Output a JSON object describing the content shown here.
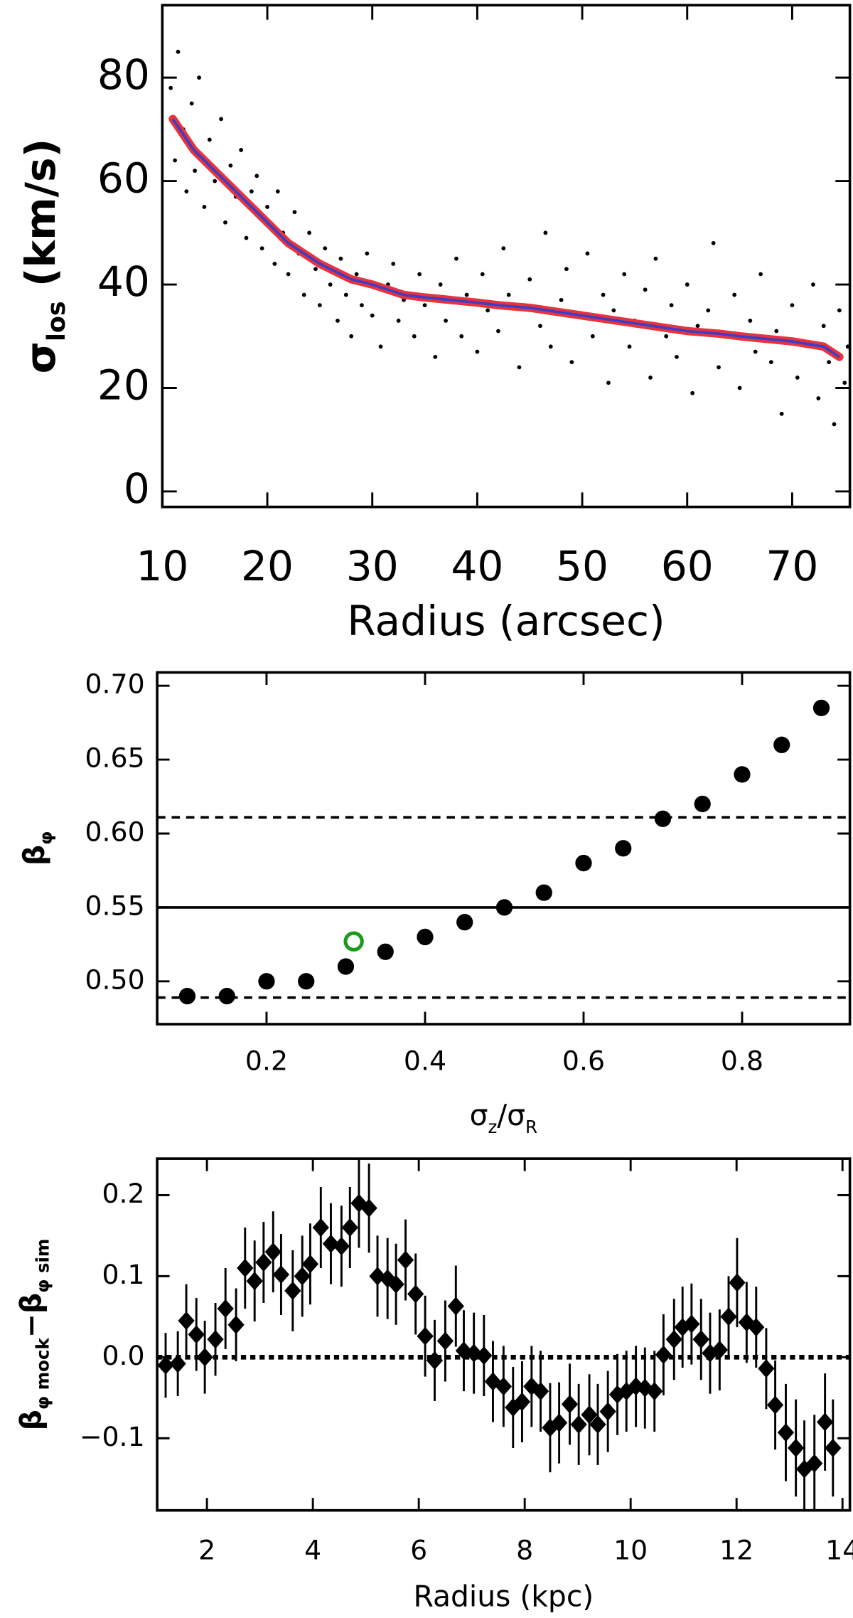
{
  "chart_data": [
    {
      "type": "scatter",
      "xlabel": "Radius (arcsec)",
      "ylabel": [
        {
          "text": "σ",
          "sub": false
        },
        {
          "text": "los",
          "sub": true
        },
        {
          "text": " (km/s)",
          "sub": false
        }
      ],
      "xlim": [
        10,
        75.5
      ],
      "ylim": [
        -3,
        94
      ],
      "xticks": [
        10,
        20,
        30,
        40,
        50,
        60,
        70
      ],
      "yticks": [
        0,
        20,
        40,
        60,
        80
      ],
      "series": [
        {
          "kind": "points",
          "color": "#000000",
          "x": [
            10.8,
            11.2,
            11.5,
            12,
            12.3,
            12.8,
            13.1,
            13.5,
            14,
            14.5,
            15,
            15.6,
            16,
            16.5,
            17,
            17.5,
            18,
            18.5,
            19,
            19.5,
            20,
            20.7,
            21,
            21.5,
            22,
            22.6,
            23,
            23.5,
            24,
            24.6,
            25,
            25.5,
            26,
            26.7,
            27,
            27.5,
            28,
            28.5,
            29,
            29.5,
            30,
            30.8,
            31.5,
            32,
            32.5,
            33,
            34,
            34.5,
            35,
            36,
            36.5,
            37,
            38,
            38.5,
            39,
            40,
            40.5,
            41,
            42,
            42.5,
            43,
            44,
            44.5,
            45,
            46,
            46.5,
            47,
            48,
            48.5,
            49,
            50,
            50.5,
            51,
            52,
            52.5,
            53,
            54,
            54.5,
            55,
            56,
            56.5,
            57,
            58,
            58.5,
            59,
            60,
            60.5,
            61,
            62,
            62.5,
            63,
            64,
            64.5,
            65,
            66,
            66.5,
            67,
            68,
            68.5,
            69,
            70,
            70.5,
            71,
            72,
            72.5,
            73,
            73.5,
            74,
            74.5,
            75,
            75.3
          ],
          "values": [
            78,
            64,
            85,
            70,
            58,
            75,
            62,
            80,
            55,
            68,
            60,
            72,
            52,
            63,
            57,
            66,
            49,
            58,
            61,
            47,
            55,
            44,
            58,
            50,
            42,
            54,
            46,
            38,
            50,
            43,
            36,
            47,
            40,
            33,
            45,
            38,
            30,
            42,
            36,
            46,
            34,
            28,
            40,
            44,
            33,
            37,
            30,
            42,
            36,
            26,
            40,
            33,
            45,
            30,
            38,
            27,
            42,
            35,
            31,
            47,
            38,
            24,
            36,
            41,
            32,
            50,
            28,
            37,
            43,
            25,
            34,
            46,
            30,
            38,
            21,
            35,
            42,
            28,
            33,
            39,
            22,
            45,
            30,
            36,
            26,
            40,
            19,
            32,
            35,
            48,
            24,
            30,
            38,
            20,
            33,
            27,
            42,
            25,
            31,
            15,
            36,
            22,
            29,
            40,
            18,
            32,
            25,
            13,
            35,
            21,
            28
          ]
        },
        {
          "kind": "line",
          "color": "#e8323c",
          "line_color": "#3b3fc8",
          "x": [
            11,
            13,
            15,
            18,
            20,
            22,
            25,
            28,
            30,
            33,
            35,
            40,
            42,
            45,
            50,
            55,
            60,
            63,
            65,
            70,
            73,
            74.5
          ],
          "values": [
            72,
            66,
            62,
            56,
            52,
            48,
            44,
            41,
            40,
            38,
            37.5,
            36.5,
            36,
            35.5,
            34,
            32.5,
            31,
            30.5,
            30,
            29,
            28,
            26
          ]
        }
      ]
    },
    {
      "type": "scatter",
      "xlabel": [
        {
          "text": "σ",
          "sub": false
        },
        {
          "text": "z",
          "sub": true
        },
        {
          "text": "/σ",
          "sub": false
        },
        {
          "text": "R",
          "sub": true
        }
      ],
      "ylabel": [
        {
          "text": "β",
          "sub": false
        },
        {
          "text": "φ",
          "sub": true
        }
      ],
      "xlim": [
        0.062,
        0.936
      ],
      "ylim": [
        0.471,
        0.709
      ],
      "xticks": [
        0.2,
        0.4,
        0.6,
        0.8
      ],
      "yticks": [
        {
          "value": 0.5,
          "label": "0.50"
        },
        0.55,
        {
          "value": 0.6,
          "label": "0.60"
        },
        0.65,
        {
          "value": 0.7,
          "label": "0.70"
        }
      ],
      "hlines": [
        {
          "y": 0.55,
          "style": "solid"
        },
        {
          "y": 0.611,
          "style": "dashed"
        },
        {
          "y": 0.489,
          "style": "dashed"
        }
      ],
      "series": [
        {
          "kind": "filled",
          "color": "#000000",
          "x": [
            0.1,
            0.15,
            0.2,
            0.25,
            0.3,
            0.35,
            0.4,
            0.45,
            0.5,
            0.55,
            0.6,
            0.65,
            0.7,
            0.75,
            0.8,
            0.85,
            0.9
          ],
          "values": [
            0.49,
            0.49,
            0.5,
            0.5,
            0.51,
            0.52,
            0.53,
            0.54,
            0.55,
            0.56,
            0.58,
            0.59,
            0.61,
            0.62,
            0.64,
            0.66,
            0.685
          ]
        },
        {
          "kind": "open",
          "color": "#1a9a1a",
          "x": [
            0.31
          ],
          "values": [
            0.527
          ]
        }
      ]
    },
    {
      "type": "errorbar",
      "xlabel": "Radius (kpc)",
      "ylabel": [
        {
          "text": "β",
          "sub": false
        },
        {
          "text": "φ mock",
          "sub": true
        },
        {
          "text": "−β",
          "sub": false
        },
        {
          "text": "φ sim",
          "sub": true
        }
      ],
      "xlim": [
        1.06,
        14.14
      ],
      "ylim": [
        -0.189,
        0.245
      ],
      "xticks": [
        2,
        4,
        6,
        8,
        10,
        12,
        14
      ],
      "yticks": [
        {
          "value": -0.1,
          "label": "−0.1"
        },
        {
          "value": 0,
          "label": "0.0"
        },
        0.1,
        0.2
      ],
      "hlines": [
        {
          "y": 0,
          "style": "dotted"
        }
      ],
      "color": "#000000",
      "x": [
        1.22,
        1.45,
        1.61,
        1.8,
        1.96,
        2.16,
        2.35,
        2.55,
        2.72,
        2.9,
        3.07,
        3.25,
        3.4,
        3.62,
        3.8,
        3.95,
        4.15,
        4.34,
        4.54,
        4.7,
        4.87,
        5.06,
        5.22,
        5.41,
        5.57,
        5.75,
        5.94,
        6.12,
        6.3,
        6.5,
        6.7,
        6.85,
        7.04,
        7.23,
        7.4,
        7.6,
        7.78,
        7.95,
        8.13,
        8.3,
        8.48,
        8.65,
        8.85,
        9.02,
        9.22,
        9.38,
        9.57,
        9.75,
        9.92,
        10.1,
        10.27,
        10.45,
        10.62,
        10.82,
        10.98,
        11.15,
        11.33,
        11.5,
        11.68,
        11.85,
        12.01,
        12.19,
        12.37,
        12.56,
        12.73,
        12.93,
        13.12,
        13.28,
        13.47,
        13.67,
        13.82
      ],
      "values": [
        -0.01,
        -0.008,
        0.045,
        0.028,
        0,
        0.022,
        0.06,
        0.04,
        0.11,
        0.094,
        0.117,
        0.13,
        0.102,
        0.082,
        0.1,
        0.115,
        0.16,
        0.14,
        0.137,
        0.16,
        0.19,
        0.184,
        0.1,
        0.097,
        0.09,
        0.12,
        0.078,
        0.026,
        -0.004,
        0.02,
        0.063,
        0.008,
        0.005,
        0.002,
        -0.03,
        -0.036,
        -0.062,
        -0.055,
        -0.036,
        -0.042,
        -0.087,
        -0.081,
        -0.058,
        -0.083,
        -0.071,
        -0.083,
        -0.067,
        -0.046,
        -0.042,
        -0.036,
        -0.038,
        -0.042,
        0.003,
        0.022,
        0.037,
        0.041,
        0.022,
        0.005,
        0.009,
        0.05,
        0.092,
        0.043,
        0.037,
        -0.014,
        -0.059,
        -0.093,
        -0.112,
        -0.138,
        -0.131,
        -0.08,
        -0.112
      ],
      "errors": [
        0.04,
        0.04,
        0.045,
        0.045,
        0.045,
        0.045,
        0.05,
        0.045,
        0.05,
        0.05,
        0.05,
        0.05,
        0.05,
        0.05,
        0.05,
        0.05,
        0.05,
        0.05,
        0.05,
        0.05,
        0.055,
        0.055,
        0.05,
        0.05,
        0.05,
        0.05,
        0.05,
        0.05,
        0.05,
        0.05,
        0.05,
        0.05,
        0.05,
        0.05,
        0.05,
        0.05,
        0.05,
        0.05,
        0.05,
        0.05,
        0.055,
        0.05,
        0.05,
        0.05,
        0.05,
        0.05,
        0.05,
        0.05,
        0.05,
        0.05,
        0.05,
        0.05,
        0.05,
        0.05,
        0.05,
        0.05,
        0.05,
        0.05,
        0.05,
        0.05,
        0.055,
        0.05,
        0.05,
        0.05,
        0.055,
        0.06,
        0.06,
        0.06,
        0.06,
        0.06,
        0.06
      ]
    }
  ]
}
